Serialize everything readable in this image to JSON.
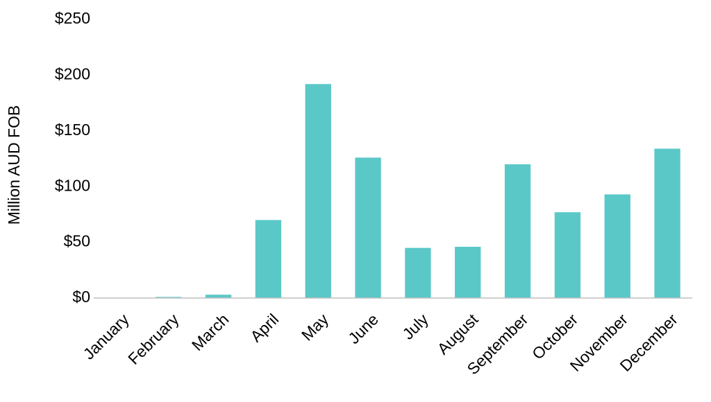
{
  "chart_data": {
    "type": "bar",
    "y_label": "Million AUD FOB",
    "categories": [
      "January",
      "February",
      "March",
      "April",
      "May",
      "June",
      "July",
      "August",
      "September",
      "October",
      "November",
      "December"
    ],
    "values": [
      0,
      1,
      3,
      70,
      192,
      126,
      45,
      46,
      120,
      77,
      93,
      134
    ],
    "color": "#5bc8c8",
    "ylim": [
      0,
      250
    ],
    "yticks": [
      {
        "value": 0,
        "label": "$0"
      },
      {
        "value": 50,
        "label": "$50"
      },
      {
        "value": 100,
        "label": "$100"
      },
      {
        "value": 150,
        "label": "$150"
      },
      {
        "value": 200,
        "label": "$200"
      },
      {
        "value": 250,
        "label": "$250"
      }
    ],
    "grid": false
  }
}
